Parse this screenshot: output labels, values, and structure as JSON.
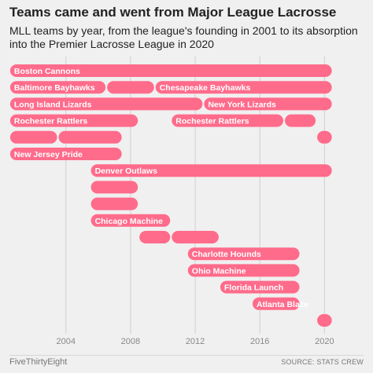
{
  "title": "Teams came and went from Major League Lacrosse",
  "subtitle": "MLL teams by year, from the league's founding in 2001 to its absorption into the Premier Lacrosse League in 2020",
  "footer": {
    "brand": "FiveThirtyEight",
    "source": "SOURCE: STATS CREW"
  },
  "colors": {
    "bar": "#ff6b8b",
    "grid": "#cfcfcf",
    "label": "#ffffff",
    "tick": "#888888",
    "background": "#f0f0f0"
  },
  "chart_data": {
    "type": "bar",
    "orientation": "horizontal-timeline",
    "xlim": [
      2000.7,
      2021.2
    ],
    "xticks": [
      2004,
      2008,
      2012,
      2016,
      2020
    ],
    "grid": true,
    "rows": [
      {
        "bars": [
          {
            "start": 2001,
            "end": 2020,
            "label": "Boston Cannons"
          }
        ]
      },
      {
        "bars": [
          {
            "start": 2001,
            "end": 2006,
            "label": "Baltimore Bayhawks"
          },
          {
            "start": 2007,
            "end": 2009,
            "label": ""
          },
          {
            "start": 2010,
            "end": 2020,
            "label": "Chesapeake Bayhawks"
          }
        ]
      },
      {
        "bars": [
          {
            "start": 2001,
            "end": 2012,
            "label": "Long Island Lizards"
          },
          {
            "start": 2013,
            "end": 2020,
            "label": "New York Lizards"
          }
        ]
      },
      {
        "bars": [
          {
            "start": 2001,
            "end": 2008,
            "label": "Rochester Rattlers"
          },
          {
            "start": 2011,
            "end": 2017,
            "label": "Rochester Rattlers"
          },
          {
            "start": 2018,
            "end": 2019,
            "label": ""
          }
        ]
      },
      {
        "bars": [
          {
            "start": 2001,
            "end": 2003,
            "label": ""
          },
          {
            "start": 2004,
            "end": 2007,
            "label": ""
          },
          {
            "start": 2020,
            "end": 2020,
            "label": ""
          }
        ]
      },
      {
        "bars": [
          {
            "start": 2001,
            "end": 2007,
            "label": "New Jersey Pride"
          }
        ]
      },
      {
        "bars": [
          {
            "start": 2006,
            "end": 2020,
            "label": "Denver Outlaws"
          }
        ]
      },
      {
        "bars": [
          {
            "start": 2006,
            "end": 2008,
            "label": ""
          }
        ]
      },
      {
        "bars": [
          {
            "start": 2006,
            "end": 2008,
            "label": ""
          }
        ]
      },
      {
        "bars": [
          {
            "start": 2006,
            "end": 2010,
            "label": "Chicago Machine"
          }
        ]
      },
      {
        "bars": [
          {
            "start": 2009,
            "end": 2010,
            "label": ""
          },
          {
            "start": 2011,
            "end": 2013,
            "label": ""
          }
        ]
      },
      {
        "bars": [
          {
            "start": 2012,
            "end": 2018,
            "label": "Charlotte Hounds"
          }
        ]
      },
      {
        "bars": [
          {
            "start": 2012,
            "end": 2018,
            "label": "Ohio Machine"
          }
        ]
      },
      {
        "bars": [
          {
            "start": 2014,
            "end": 2018,
            "label": "Florida Launch"
          }
        ]
      },
      {
        "bars": [
          {
            "start": 2016,
            "end": 2018,
            "label": "Atlanta Blaze"
          }
        ]
      },
      {
        "bars": [
          {
            "start": 2020,
            "end": 2020,
            "label": ""
          }
        ]
      }
    ]
  }
}
